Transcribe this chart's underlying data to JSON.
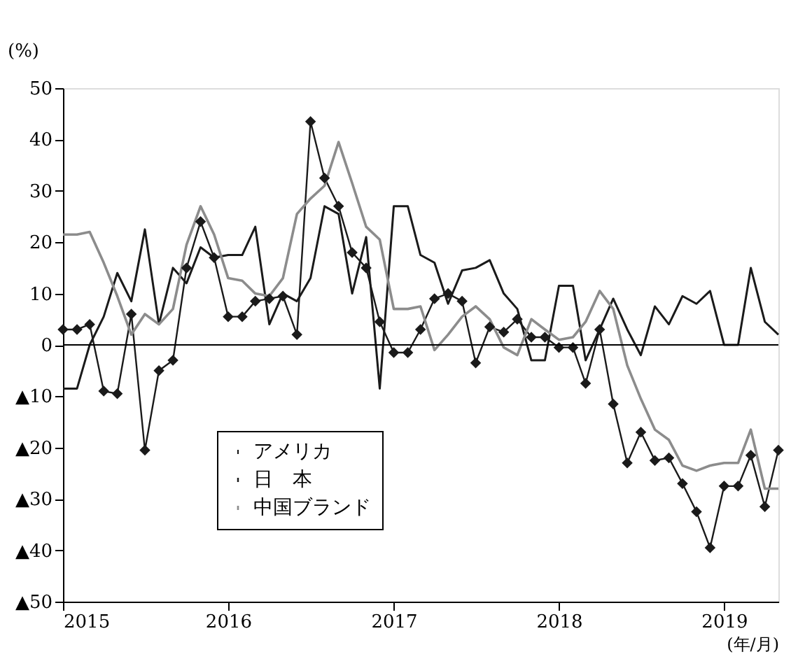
{
  "chart_data": {
    "type": "line",
    "ylabel": "(%)",
    "xlabel": "(年/月)",
    "x": [
      "2015-01",
      "2015-02",
      "2015-03",
      "2015-04",
      "2015-05",
      "2015-06",
      "2015-07",
      "2015-08",
      "2015-09",
      "2015-10",
      "2015-11",
      "2015-12",
      "2016-01",
      "2016-02",
      "2016-03",
      "2016-04",
      "2016-05",
      "2016-06",
      "2016-07",
      "2016-08",
      "2016-09",
      "2016-10",
      "2016-11",
      "2016-12",
      "2017-01",
      "2017-02",
      "2017-03",
      "2017-04",
      "2017-05",
      "2017-06",
      "2017-07",
      "2017-08",
      "2017-09",
      "2017-10",
      "2017-11",
      "2017-12",
      "2018-01",
      "2018-02",
      "2018-03",
      "2018-04",
      "2018-05",
      "2018-06",
      "2018-07",
      "2018-08",
      "2018-09",
      "2018-10",
      "2018-11",
      "2018-12",
      "2019-01",
      "2019-02",
      "2019-03",
      "2019-04",
      "2019-05"
    ],
    "series": [
      {
        "name": "アメリカ",
        "color": "#1a1a1a",
        "marker": "diamond",
        "values": [
          3,
          3,
          4,
          -9,
          -9.5,
          6,
          -20.5,
          -5,
          -3,
          15,
          24,
          17,
          5.5,
          5.5,
          8.5,
          9,
          9.5,
          2,
          43.5,
          32.5,
          27,
          18,
          15,
          4.5,
          -1.5,
          -1.5,
          3,
          9,
          10,
          8.5,
          -3.5,
          3.5,
          2.5,
          5,
          1.5,
          1.5,
          -0.5,
          -0.5,
          -7.5,
          3,
          -11.5,
          -23,
          -17,
          -22.5,
          -22,
          -27,
          -32.5,
          -39.5,
          -27.5,
          -27.5,
          -21.5,
          -31.5,
          -20.5
        ]
      },
      {
        "name": "日　本",
        "color": "#1a1a1a",
        "marker": "none",
        "values": [
          -8.5,
          -8.5,
          0,
          5.5,
          14,
          8.5,
          22.5,
          4,
          15,
          12,
          19,
          17,
          17.5,
          17.5,
          23,
          4,
          10,
          8.5,
          13,
          27,
          25.5,
          10,
          21,
          -8.5,
          27,
          27,
          17.5,
          16,
          8,
          14.5,
          15,
          16.5,
          10,
          7,
          -3,
          -3,
          11.5,
          11.5,
          -3,
          3,
          9,
          3,
          -2,
          7.5,
          4,
          9.5,
          8,
          10.5,
          0,
          0,
          15,
          4.5,
          2
        ]
      },
      {
        "name": "中国ブランド",
        "color": "#8c8c8c",
        "marker": "none",
        "values": [
          21.5,
          21.5,
          22,
          16,
          9.5,
          2,
          6,
          4,
          7,
          19.5,
          27,
          21.5,
          13,
          12.5,
          10,
          9.5,
          13,
          25.5,
          28.5,
          31,
          39.5,
          31.5,
          23,
          20.5,
          7,
          7,
          7.5,
          -1,
          2,
          5.5,
          7.5,
          5,
          -0.5,
          -2,
          5,
          3,
          1,
          1.5,
          4.5,
          10.5,
          7,
          -4,
          -10.5,
          -16.5,
          -18.5,
          -23.5,
          -24.5,
          -23.5,
          -23,
          -23,
          -16.5,
          -28,
          -28
        ]
      }
    ],
    "xlim": [
      "2015-01",
      "2019-05"
    ],
    "xticks": [
      "2015",
      "2016",
      "2017",
      "2018",
      "2019"
    ],
    "ylim": [
      -50,
      50
    ],
    "yticks": [
      50,
      40,
      30,
      20,
      10,
      0,
      {
        "value": -10,
        "label": "▲10"
      },
      {
        "value": -20,
        "label": "▲20"
      },
      {
        "value": -30,
        "label": "▲30"
      },
      {
        "value": -40,
        "label": "▲40"
      },
      {
        "value": -50,
        "label": "▲50"
      }
    ],
    "ref_lines": [
      {
        "axis": "y",
        "value": 0,
        "color": "#000000"
      }
    ],
    "grid": false,
    "legend": "bottom left"
  }
}
